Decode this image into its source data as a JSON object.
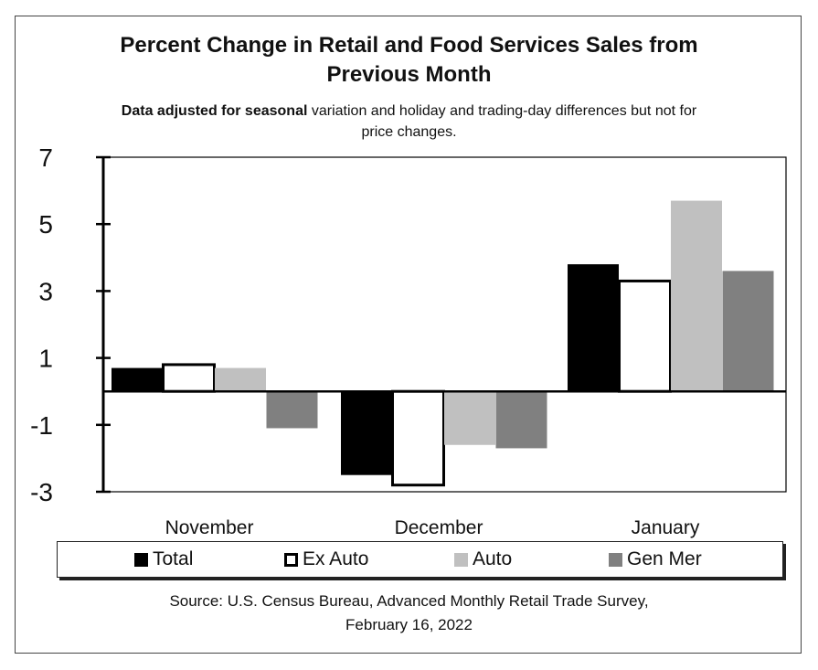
{
  "title_line1": "Percent Change in Retail and Food Services Sales from",
  "title_line2": "Previous Month",
  "subtitle_bold": "Data adjusted for seasonal",
  "subtitle_rest": " variation and holiday and trading-day differences but not for",
  "subtitle_line2": "price changes.",
  "source_line1": "Source: U.S. Census Bureau, Advanced Monthly Retail Trade Survey,",
  "source_line2": "February 16, 2022",
  "chart_data": {
    "type": "bar",
    "categories": [
      "November",
      "December",
      "January"
    ],
    "series": [
      {
        "name": "Total",
        "values": [
          0.7,
          -2.5,
          3.8
        ],
        "color": "#000000",
        "outlined": false
      },
      {
        "name": "Ex Auto",
        "values": [
          0.8,
          -2.8,
          3.3
        ],
        "color": "#ffffff",
        "outlined": true
      },
      {
        "name": "Auto",
        "values": [
          0.7,
          -1.6,
          5.7
        ],
        "color": "#c0c0c0",
        "outlined": false
      },
      {
        "name": "Gen Mer",
        "values": [
          -1.1,
          -1.7,
          3.6
        ],
        "color": "#808080",
        "outlined": false
      }
    ],
    "yticks": [
      7,
      5,
      3,
      1,
      -1,
      -3
    ],
    "ytick_labels": [
      "7",
      "5",
      "3",
      "1",
      "-1",
      "-3"
    ],
    "ylim": [
      -3,
      7
    ],
    "grid": false,
    "legend_position": "bottom"
  }
}
